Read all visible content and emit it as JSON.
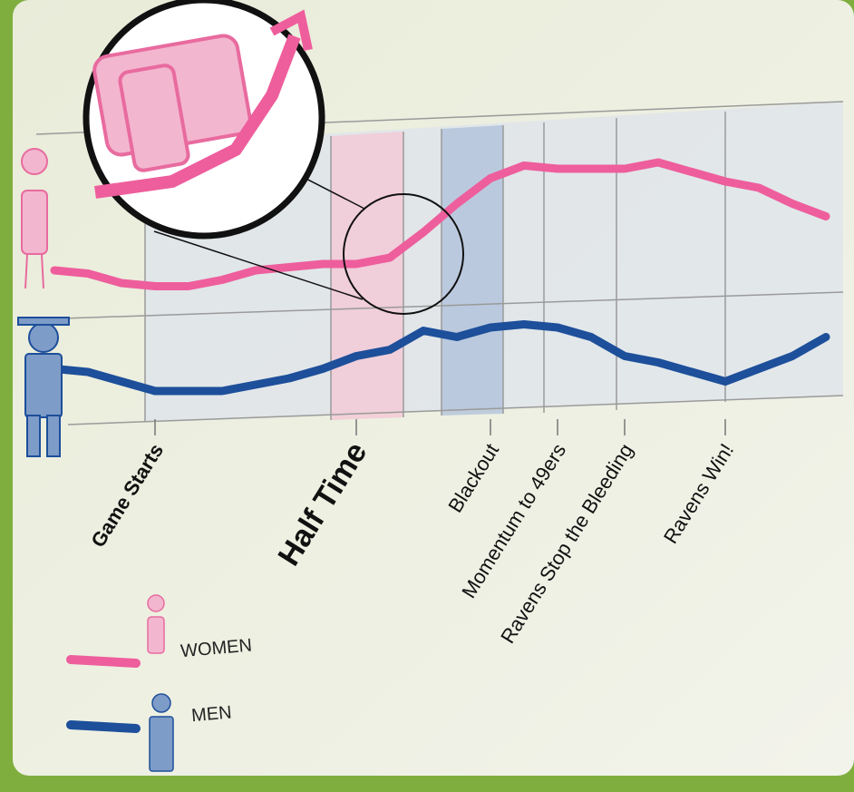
{
  "chart_data": {
    "type": "line",
    "categories": [
      null,
      null,
      null,
      "Game Starts",
      null,
      null,
      null,
      null,
      null,
      "Half Time",
      null,
      null,
      null,
      "Blackout",
      null,
      "Momentum to 49ers",
      null,
      "Ravens Stop the Bleeding",
      null,
      null,
      "Ravens Win!",
      null,
      null,
      null
    ],
    "series": [
      {
        "name": "WOMEN",
        "color": "#ee5e9c",
        "values": [
          52,
          51,
          48,
          47,
          47,
          49,
          52,
          53,
          54,
          54,
          56,
          64,
          73,
          81,
          85,
          84,
          84,
          84,
          86,
          83,
          80,
          78,
          73,
          69
        ]
      },
      {
        "name": "MEN",
        "color": "#1d4f9a",
        "values": [
          21,
          20,
          17,
          14,
          14,
          14,
          16,
          18,
          21,
          25,
          27,
          33,
          31,
          34,
          35,
          34,
          31,
          25,
          23,
          20,
          17,
          21,
          25,
          31
        ]
      }
    ],
    "ylim": [
      0,
      100
    ]
  }
}
